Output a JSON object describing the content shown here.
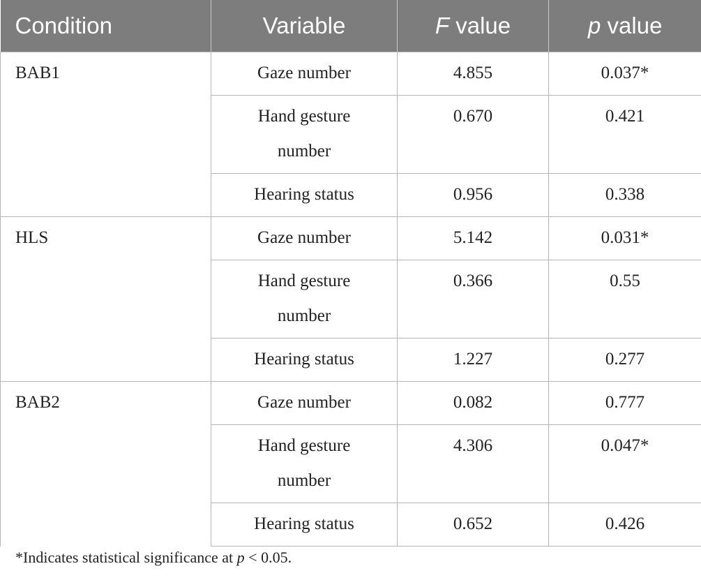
{
  "table": {
    "headers": [
      {
        "pre": "",
        "italic": "",
        "text": "Condition"
      },
      {
        "pre": "",
        "italic": "",
        "text": "Variable"
      },
      {
        "pre": "",
        "italic": "F",
        "text": " value"
      },
      {
        "pre": "",
        "italic": "p",
        "text": " value"
      }
    ],
    "groups": [
      {
        "condition": "BAB1",
        "rows": [
          {
            "variable": "Gaze number",
            "f_value": "4.855",
            "p_value": "0.037*"
          },
          {
            "variable": "Hand gesture number",
            "f_value": "0.670",
            "p_value": "0.421"
          },
          {
            "variable": "Hearing status",
            "f_value": "0.956",
            "p_value": "0.338"
          }
        ]
      },
      {
        "condition": "HLS",
        "rows": [
          {
            "variable": "Gaze number",
            "f_value": "5.142",
            "p_value": "0.031*"
          },
          {
            "variable": "Hand gesture number",
            "f_value": "0.366",
            "p_value": "0.55"
          },
          {
            "variable": "Hearing status",
            "f_value": "1.227",
            "p_value": "0.277"
          }
        ]
      },
      {
        "condition": "BAB2",
        "rows": [
          {
            "variable": "Gaze number",
            "f_value": "0.082",
            "p_value": "0.777"
          },
          {
            "variable": "Hand gesture number",
            "f_value": "4.306",
            "p_value": "0.047*"
          },
          {
            "variable": "Hearing status",
            "f_value": "0.652",
            "p_value": "0.426"
          }
        ]
      }
    ]
  },
  "footnote": {
    "before": "*Indicates statistical significance at ",
    "italic": "p",
    "after": " < 0.05."
  },
  "colors": {
    "header_background": "#7d7d7d",
    "header_text": "#ffffff",
    "grid_lines": "#b5b5b5",
    "body_text": "#222222"
  }
}
